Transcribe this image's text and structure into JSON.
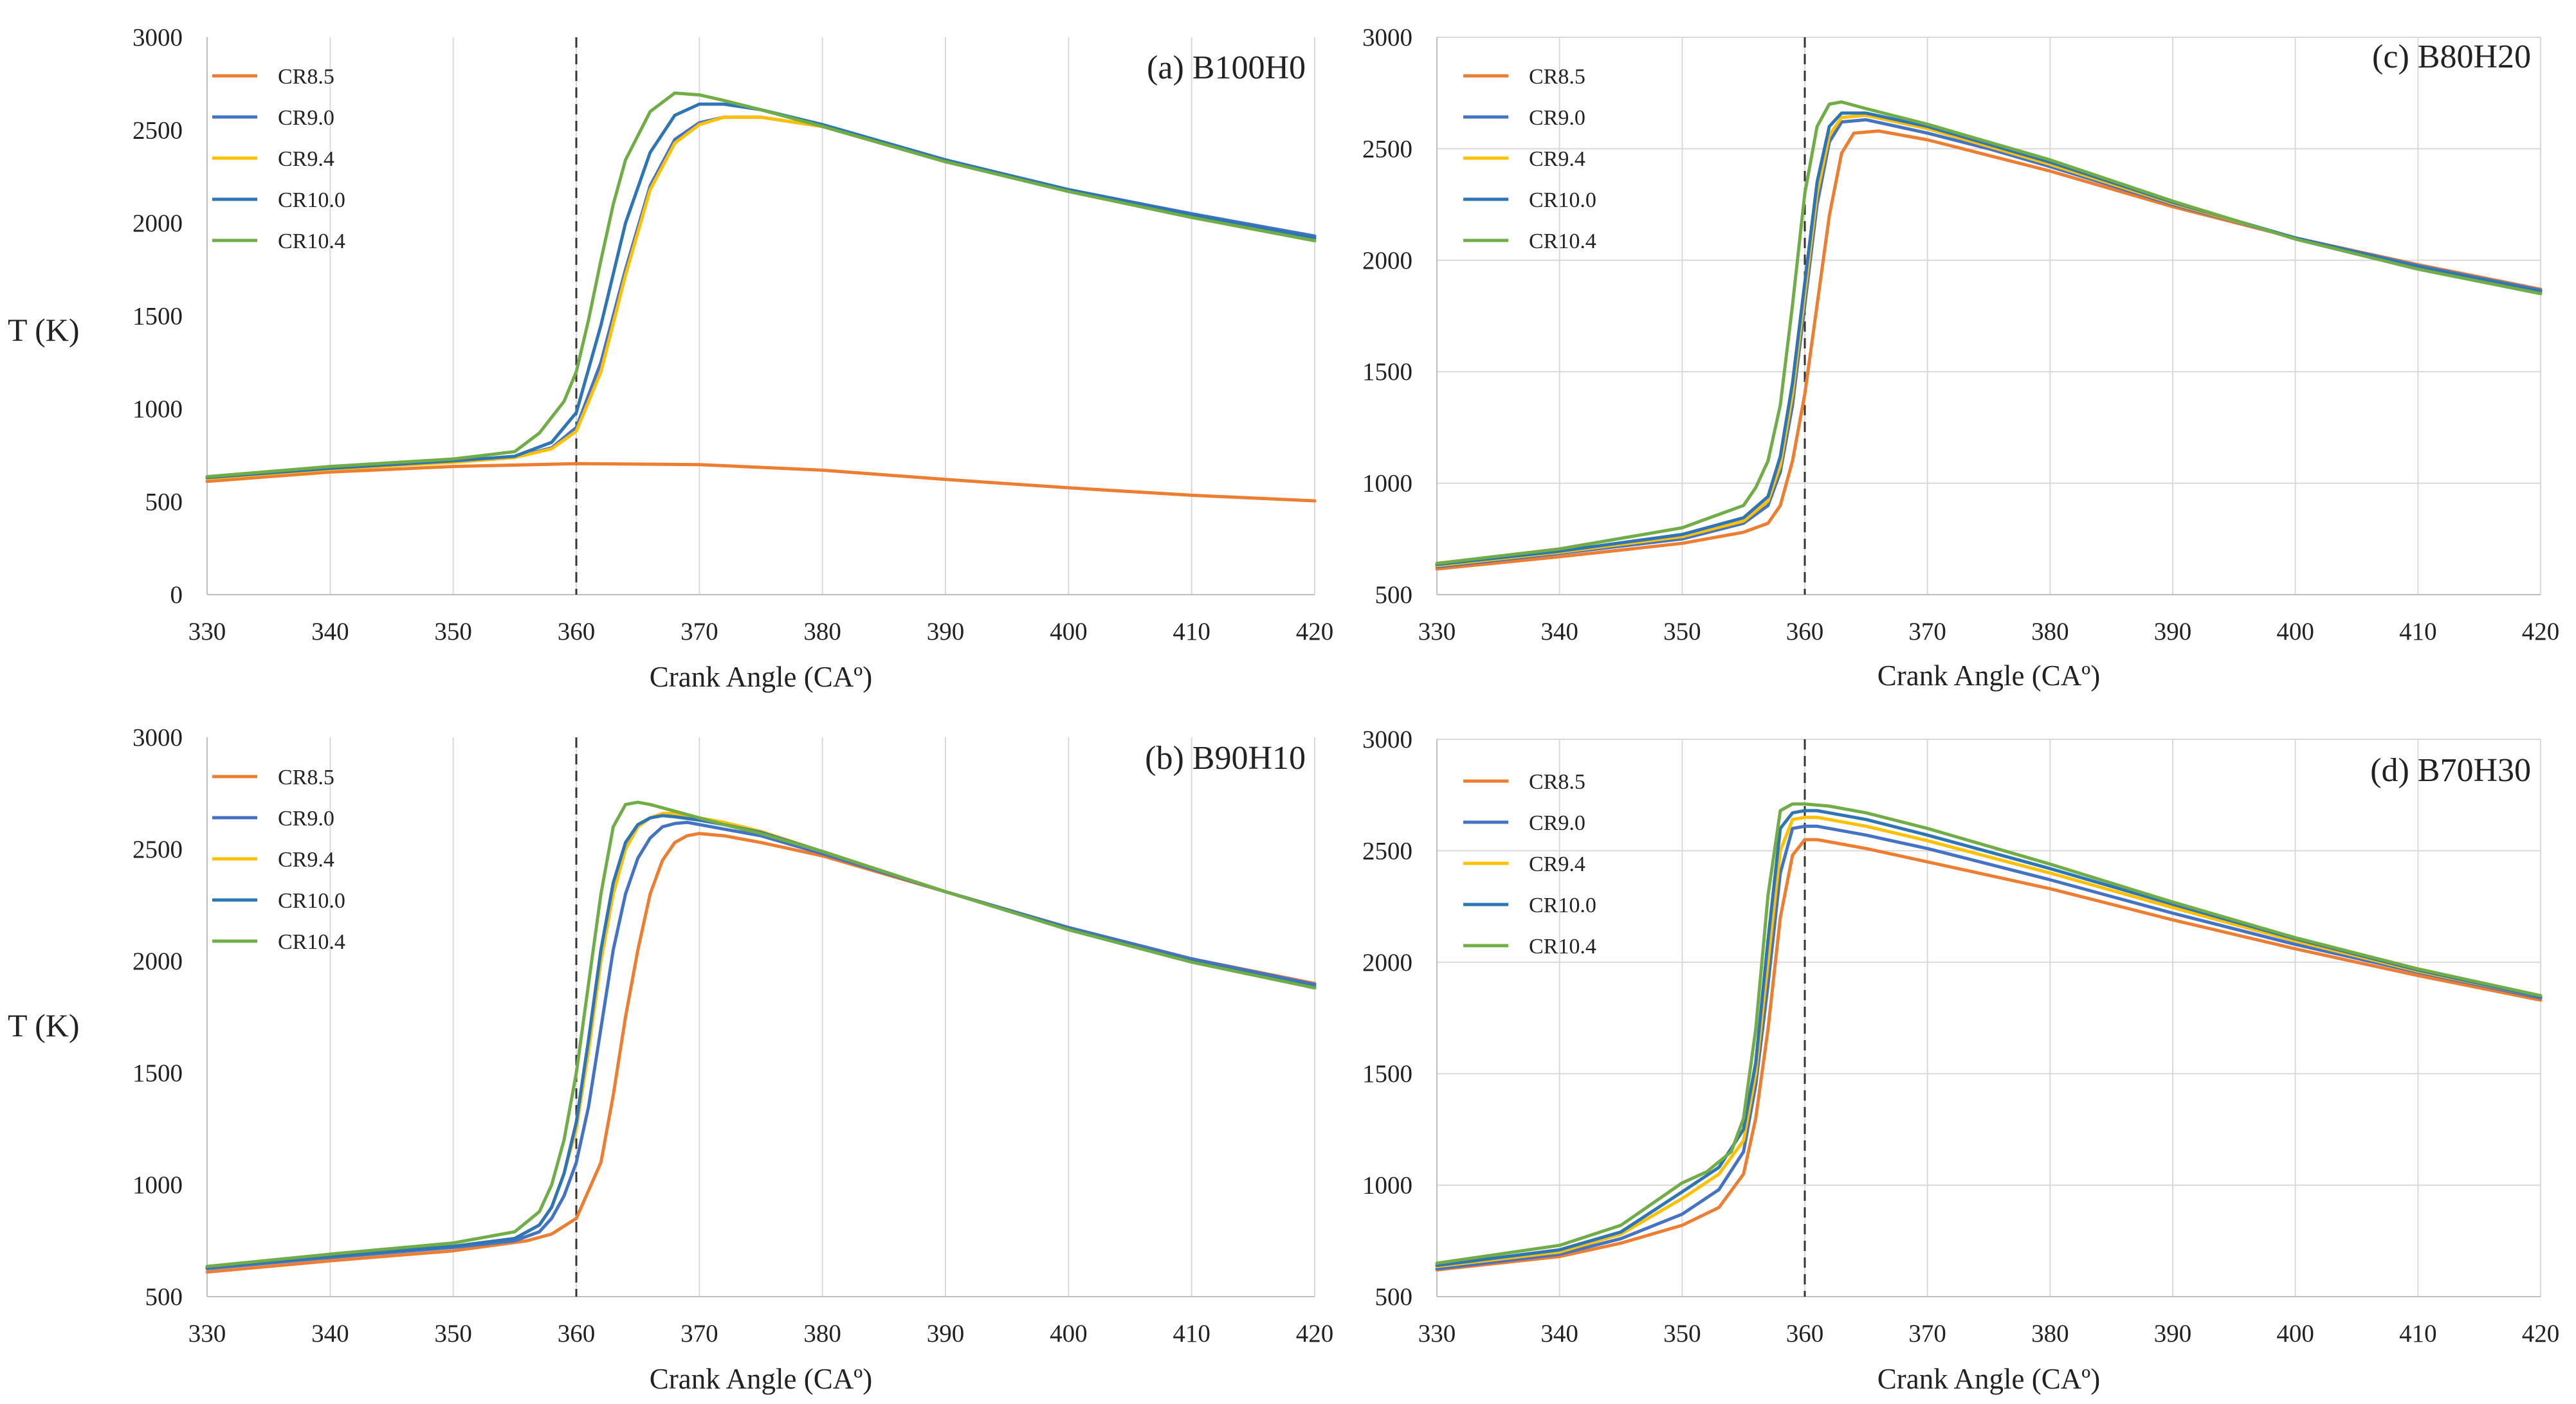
{
  "figure": {
    "ylabel_left_top": "T (K)",
    "ylabel_left_bottom": "T (K)"
  },
  "chart_data": [
    {
      "id": "a",
      "type": "line",
      "title": "(a) B100H0",
      "xlabel": "Crank Angle (CAº)",
      "ylabel": "T (K)",
      "xlim": [
        330,
        420
      ],
      "ylim": [
        0,
        3000
      ],
      "xticks": [
        330,
        340,
        350,
        360,
        370,
        380,
        390,
        400,
        410,
        420
      ],
      "yticks": [
        0,
        500,
        1000,
        1500,
        2000,
        2500,
        3000
      ],
      "vline_x": 360,
      "grid": "vertical",
      "legend_position": "top-left",
      "series": [
        {
          "name": "CR8.5",
          "color": "#ED7D31",
          "x": [
            330,
            340,
            350,
            360,
            370,
            380,
            390,
            400,
            410,
            420
          ],
          "y": [
            610,
            660,
            690,
            705,
            700,
            670,
            620,
            575,
            535,
            505
          ]
        },
        {
          "name": "CR9.0",
          "color": "#4472C4",
          "x": [
            330,
            340,
            350,
            355,
            358,
            360,
            362,
            364,
            366,
            368,
            370,
            372,
            375,
            380,
            390,
            400,
            410,
            420
          ],
          "y": [
            625,
            675,
            715,
            740,
            790,
            900,
            1250,
            1750,
            2200,
            2450,
            2540,
            2570,
            2570,
            2520,
            2330,
            2180,
            2050,
            1930
          ]
        },
        {
          "name": "CR9.4",
          "color": "#FFC000",
          "x": [
            330,
            340,
            350,
            355,
            358,
            360,
            362,
            364,
            366,
            368,
            370,
            372,
            375,
            380,
            390,
            400,
            410,
            420
          ],
          "y": [
            625,
            675,
            712,
            738,
            785,
            880,
            1200,
            1720,
            2180,
            2430,
            2530,
            2570,
            2570,
            2520,
            2330,
            2175,
            2040,
            1915
          ]
        },
        {
          "name": "CR10.0",
          "color": "#2E75B6",
          "x": [
            330,
            340,
            350,
            355,
            358,
            360,
            362,
            364,
            366,
            368,
            370,
            372,
            375,
            380,
            390,
            400,
            410,
            420
          ],
          "y": [
            630,
            680,
            720,
            745,
            820,
            980,
            1450,
            2000,
            2380,
            2580,
            2640,
            2640,
            2610,
            2530,
            2340,
            2180,
            2045,
            1920
          ]
        },
        {
          "name": "CR10.4",
          "color": "#70AD47",
          "x": [
            330,
            340,
            350,
            355,
            357,
            359,
            360,
            361,
            362,
            363,
            364,
            366,
            368,
            370,
            372,
            375,
            380,
            390,
            400,
            410,
            420
          ],
          "y": [
            635,
            690,
            730,
            770,
            870,
            1040,
            1200,
            1480,
            1800,
            2100,
            2340,
            2600,
            2700,
            2690,
            2660,
            2610,
            2520,
            2330,
            2170,
            2030,
            1905
          ]
        }
      ]
    },
    {
      "id": "b",
      "type": "line",
      "title": "(b) B90H10",
      "xlabel": "Crank Angle (CAº)",
      "ylabel": "T (K)",
      "xlim": [
        330,
        420
      ],
      "ylim": [
        500,
        3000
      ],
      "xticks": [
        330,
        340,
        350,
        360,
        370,
        380,
        390,
        400,
        410,
        420
      ],
      "yticks": [
        500,
        1000,
        1500,
        2000,
        2500,
        3000
      ],
      "vline_x": 360,
      "grid": "vertical",
      "legend_position": "top-left",
      "series": [
        {
          "name": "CR8.5",
          "color": "#ED7D31",
          "x": [
            330,
            340,
            350,
            356,
            358,
            360,
            362,
            363,
            364,
            365,
            366,
            367,
            368,
            369,
            370,
            372,
            375,
            380,
            390,
            400,
            410,
            420
          ],
          "y": [
            610,
            660,
            705,
            750,
            780,
            850,
            1100,
            1400,
            1750,
            2050,
            2300,
            2450,
            2530,
            2560,
            2570,
            2560,
            2530,
            2470,
            2310,
            2150,
            2010,
            1900
          ]
        },
        {
          "name": "CR9.0",
          "color": "#4472C4",
          "x": [
            330,
            340,
            350,
            355,
            357,
            358,
            359,
            360,
            361,
            362,
            363,
            364,
            365,
            366,
            367,
            368,
            369,
            370,
            372,
            375,
            380,
            390,
            400,
            410,
            420
          ],
          "y": [
            625,
            675,
            720,
            750,
            790,
            850,
            950,
            1100,
            1350,
            1700,
            2050,
            2300,
            2460,
            2550,
            2600,
            2615,
            2620,
            2610,
            2590,
            2560,
            2480,
            2310,
            2150,
            2010,
            1895
          ]
        },
        {
          "name": "CR9.4",
          "color": "#FFC000",
          "x": [
            330,
            340,
            350,
            355,
            357,
            358,
            359,
            360,
            361,
            362,
            363,
            364,
            365,
            366,
            367,
            368,
            370,
            372,
            375,
            380,
            390,
            400,
            410,
            420
          ],
          "y": [
            630,
            680,
            725,
            760,
            820,
            900,
            1050,
            1250,
            1600,
            2000,
            2300,
            2500,
            2600,
            2640,
            2660,
            2660,
            2640,
            2620,
            2580,
            2490,
            2310,
            2145,
            2000,
            1885
          ]
        },
        {
          "name": "CR10.0",
          "color": "#2E75B6",
          "x": [
            330,
            340,
            350,
            355,
            357,
            358,
            359,
            360,
            361,
            362,
            363,
            364,
            365,
            366,
            367,
            368,
            370,
            372,
            375,
            380,
            390,
            400,
            410,
            420
          ],
          "y": [
            630,
            680,
            725,
            760,
            820,
            900,
            1050,
            1280,
            1650,
            2050,
            2350,
            2530,
            2610,
            2640,
            2650,
            2645,
            2630,
            2610,
            2575,
            2490,
            2310,
            2145,
            2000,
            1885
          ]
        },
        {
          "name": "CR10.4",
          "color": "#70AD47",
          "x": [
            330,
            340,
            350,
            355,
            357,
            358,
            359,
            360,
            361,
            362,
            363,
            364,
            365,
            366,
            368,
            370,
            372,
            375,
            380,
            390,
            400,
            410,
            420
          ],
          "y": [
            635,
            690,
            740,
            790,
            880,
            1000,
            1200,
            1500,
            1900,
            2300,
            2600,
            2700,
            2710,
            2700,
            2670,
            2640,
            2610,
            2570,
            2490,
            2310,
            2140,
            1995,
            1880
          ]
        }
      ]
    },
    {
      "id": "c",
      "type": "line",
      "title": "(c) B80H20",
      "xlabel": "Crank Angle (CAº)",
      "ylabel": "",
      "xlim": [
        330,
        420
      ],
      "ylim": [
        500,
        3000
      ],
      "xticks": [
        330,
        340,
        350,
        360,
        370,
        380,
        390,
        400,
        410,
        420
      ],
      "yticks": [
        500,
        1000,
        1500,
        2000,
        2500,
        3000
      ],
      "vline_x": 360,
      "grid": "both",
      "legend_position": "top-left",
      "series": [
        {
          "name": "CR8.5",
          "color": "#ED7D31",
          "x": [
            330,
            340,
            350,
            355,
            357,
            358,
            359,
            360,
            361,
            362,
            363,
            364,
            366,
            370,
            375,
            380,
            390,
            400,
            410,
            420
          ],
          "y": [
            615,
            670,
            730,
            780,
            820,
            900,
            1100,
            1400,
            1800,
            2200,
            2480,
            2570,
            2580,
            2540,
            2470,
            2400,
            2240,
            2100,
            1980,
            1870
          ]
        },
        {
          "name": "CR9.0",
          "color": "#4472C4",
          "x": [
            330,
            340,
            350,
            355,
            357,
            358,
            359,
            360,
            361,
            362,
            363,
            365,
            370,
            375,
            380,
            390,
            400,
            410,
            420
          ],
          "y": [
            625,
            685,
            750,
            820,
            900,
            1050,
            1350,
            1800,
            2250,
            2530,
            2620,
            2630,
            2570,
            2500,
            2420,
            2250,
            2100,
            1975,
            1865
          ]
        },
        {
          "name": "CR9.4",
          "color": "#FFC000",
          "x": [
            330,
            340,
            350,
            355,
            357,
            358,
            359,
            360,
            361,
            362,
            363,
            365,
            370,
            375,
            380,
            390,
            400,
            410,
            420
          ],
          "y": [
            630,
            690,
            760,
            830,
            920,
            1080,
            1400,
            1850,
            2300,
            2560,
            2640,
            2650,
            2590,
            2510,
            2430,
            2255,
            2100,
            1970,
            1860
          ]
        },
        {
          "name": "CR10.0",
          "color": "#2E75B6",
          "x": [
            330,
            340,
            350,
            355,
            357,
            358,
            359,
            360,
            361,
            362,
            363,
            365,
            370,
            375,
            380,
            390,
            400,
            410,
            420
          ],
          "y": [
            635,
            695,
            770,
            845,
            940,
            1120,
            1450,
            1900,
            2350,
            2600,
            2660,
            2660,
            2600,
            2520,
            2440,
            2260,
            2100,
            1970,
            1860
          ]
        },
        {
          "name": "CR10.4",
          "color": "#70AD47",
          "x": [
            330,
            340,
            350,
            355,
            356,
            357,
            358,
            359,
            360,
            361,
            362,
            363,
            365,
            370,
            375,
            380,
            390,
            400,
            410,
            420
          ],
          "y": [
            640,
            705,
            800,
            900,
            980,
            1100,
            1350,
            1800,
            2300,
            2600,
            2700,
            2710,
            2680,
            2610,
            2530,
            2450,
            2265,
            2095,
            1960,
            1850
          ]
        }
      ]
    },
    {
      "id": "d",
      "type": "line",
      "title": "(d) B70H30",
      "xlabel": "Crank Angle (CAº)",
      "ylabel": "",
      "xlim": [
        330,
        420
      ],
      "ylim": [
        500,
        3000
      ],
      "xticks": [
        330,
        340,
        350,
        360,
        370,
        380,
        390,
        400,
        410,
        420
      ],
      "yticks": [
        500,
        1000,
        1500,
        2000,
        2500,
        3000
      ],
      "vline_x": 360,
      "grid": "both",
      "legend_position": "top-left",
      "series": [
        {
          "name": "CR8.5",
          "color": "#ED7D31",
          "x": [
            330,
            340,
            345,
            350,
            353,
            355,
            356,
            357,
            358,
            359,
            360,
            361,
            362,
            365,
            370,
            380,
            390,
            400,
            410,
            420
          ],
          "y": [
            620,
            680,
            740,
            820,
            900,
            1050,
            1300,
            1700,
            2200,
            2480,
            2550,
            2550,
            2540,
            2510,
            2450,
            2330,
            2190,
            2060,
            1940,
            1830
          ]
        },
        {
          "name": "CR9.0",
          "color": "#4472C4",
          "x": [
            330,
            340,
            345,
            350,
            353,
            355,
            356,
            357,
            358,
            359,
            360,
            361,
            362,
            365,
            370,
            380,
            390,
            400,
            410,
            420
          ],
          "y": [
            625,
            690,
            760,
            870,
            980,
            1150,
            1450,
            1900,
            2400,
            2600,
            2610,
            2610,
            2600,
            2570,
            2510,
            2370,
            2220,
            2080,
            1955,
            1840
          ]
        },
        {
          "name": "CR9.4",
          "color": "#FFC000",
          "x": [
            330,
            340,
            345,
            350,
            353,
            355,
            356,
            357,
            358,
            359,
            360,
            361,
            362,
            365,
            370,
            380,
            390,
            400,
            410,
            420
          ],
          "y": [
            635,
            700,
            780,
            940,
            1050,
            1200,
            1500,
            2000,
            2500,
            2640,
            2650,
            2650,
            2640,
            2610,
            2545,
            2400,
            2245,
            2095,
            1960,
            1845
          ]
        },
        {
          "name": "CR10.0",
          "color": "#2E75B6",
          "x": [
            330,
            340,
            345,
            350,
            353,
            355,
            356,
            357,
            358,
            359,
            360,
            361,
            362,
            365,
            370,
            380,
            390,
            400,
            410,
            420
          ],
          "y": [
            640,
            710,
            790,
            970,
            1080,
            1250,
            1550,
            2100,
            2600,
            2670,
            2680,
            2680,
            2670,
            2640,
            2570,
            2420,
            2260,
            2105,
            1965,
            1845
          ]
        },
        {
          "name": "CR10.4",
          "color": "#70AD47",
          "x": [
            330,
            340,
            345,
            350,
            352,
            354,
            355,
            356,
            357,
            358,
            359,
            360,
            362,
            365,
            370,
            380,
            390,
            400,
            410,
            420
          ],
          "y": [
            650,
            730,
            820,
            1010,
            1060,
            1150,
            1300,
            1700,
            2300,
            2680,
            2710,
            2710,
            2700,
            2670,
            2600,
            2440,
            2270,
            2110,
            1970,
            1850
          ]
        }
      ]
    }
  ]
}
